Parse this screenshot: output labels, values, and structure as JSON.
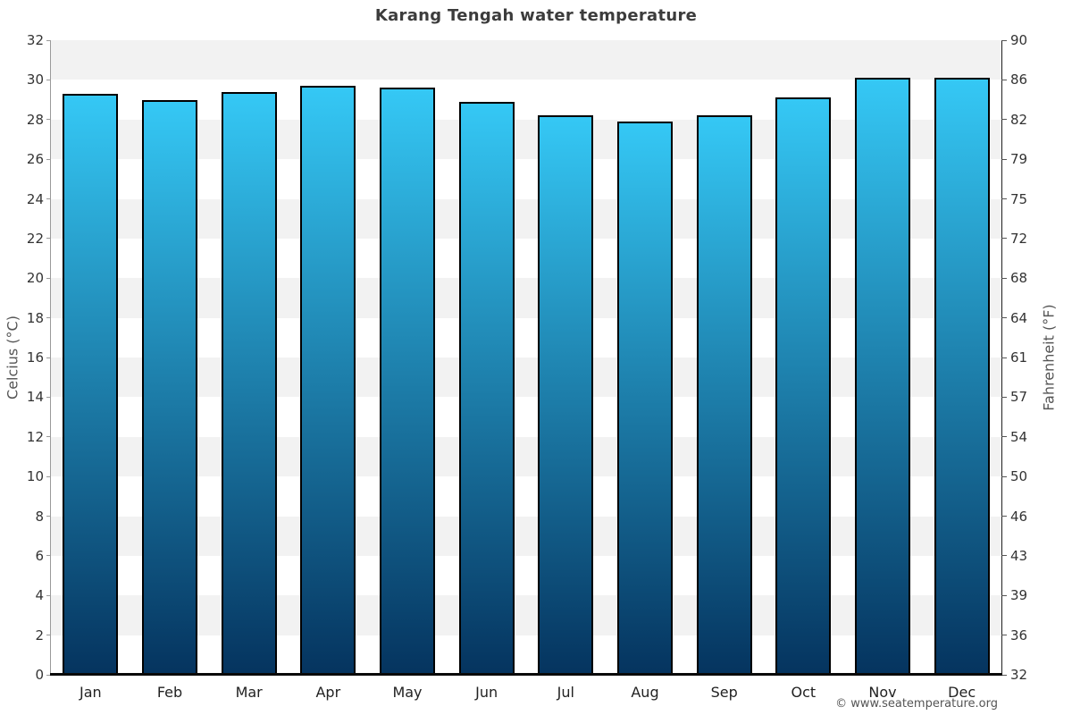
{
  "chart_data": {
    "type": "bar",
    "title": "Karang Tengah water temperature",
    "categories": [
      "Jan",
      "Feb",
      "Mar",
      "Apr",
      "May",
      "Jun",
      "Jul",
      "Aug",
      "Sep",
      "Oct",
      "Nov",
      "Dec"
    ],
    "values": [
      29.3,
      29.0,
      29.4,
      29.7,
      29.6,
      28.9,
      28.2,
      27.9,
      28.2,
      29.1,
      30.1,
      30.1
    ],
    "unit": "°C",
    "ylabel_left": "Celcius (°C)",
    "ylabel_right": "Fahrenheit (°F)",
    "ylim": [
      0,
      32
    ],
    "ytick_step": 2,
    "yticks_left": [
      32,
      30,
      28,
      26,
      24,
      22,
      20,
      18,
      16,
      14,
      12,
      10,
      8,
      6,
      4,
      2,
      0
    ],
    "yticks_right": [
      90,
      86,
      82,
      79,
      75,
      72,
      68,
      64,
      61,
      57,
      54,
      50,
      46,
      43,
      39,
      36,
      32
    ],
    "grid": "alternating-horizontal-bands",
    "legend": "none",
    "style": {
      "bar_gradient_top": "#35c8f5",
      "bar_gradient_bottom": "#05345f",
      "bar_border": "#000000",
      "band_fill": "#f2f2f2",
      "title_color": "#3c3c3c",
      "tick_color": "#333333"
    }
  },
  "footer": {
    "copyright": "© www.seatemperature.org"
  }
}
